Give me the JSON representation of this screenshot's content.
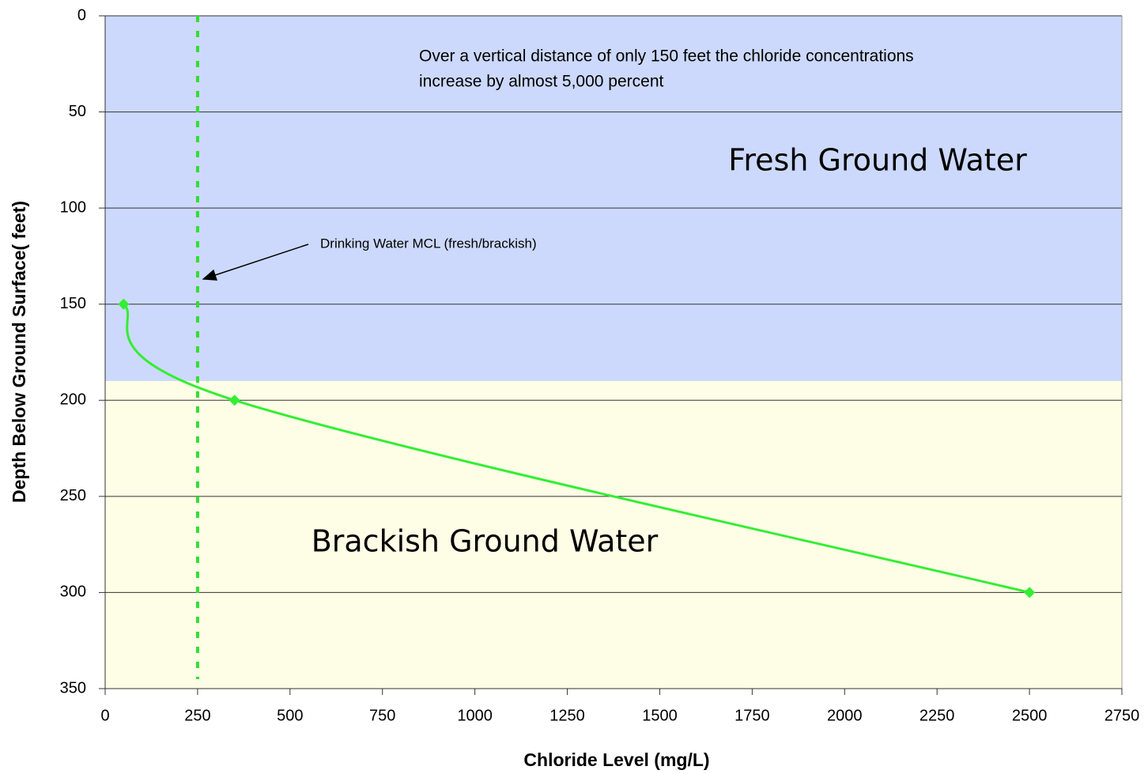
{
  "chart_data": {
    "type": "line",
    "x_label": "Chloride Level (mg/L)",
    "y_label": "Depth Below Ground Surface( feet)",
    "annotation": [
      "Over a vertical distance of only 150 feet the chloride concentrations",
      "increase by almost 5,000 percent"
    ],
    "regions": [
      {
        "label": "Fresh Ground Water",
        "from": 0,
        "to": 190,
        "color": "#ccd9fc"
      },
      {
        "label": "Brackish Ground Water",
        "from": 190,
        "to": 350,
        "color": "#fefee6"
      }
    ],
    "reference_line": {
      "x": 250,
      "label": "Drinking Water MCL (fresh/brackish)",
      "color": "#33dd33"
    },
    "x": [
      50,
      350,
      2500
    ],
    "series": [
      {
        "color": "#33ee33",
        "values": [
          150,
          200,
          300
        ]
      }
    ],
    "smooth": true,
    "xlim": [
      0,
      2750
    ],
    "xticks": [
      0,
      250,
      500,
      750,
      1000,
      1250,
      1500,
      1750,
      2000,
      2250,
      2500,
      2750
    ],
    "ylim": [
      0,
      350
    ],
    "yticks": [
      0,
      50,
      100,
      150,
      200,
      250,
      300,
      350
    ],
    "y_inverted": true,
    "grid": true
  }
}
